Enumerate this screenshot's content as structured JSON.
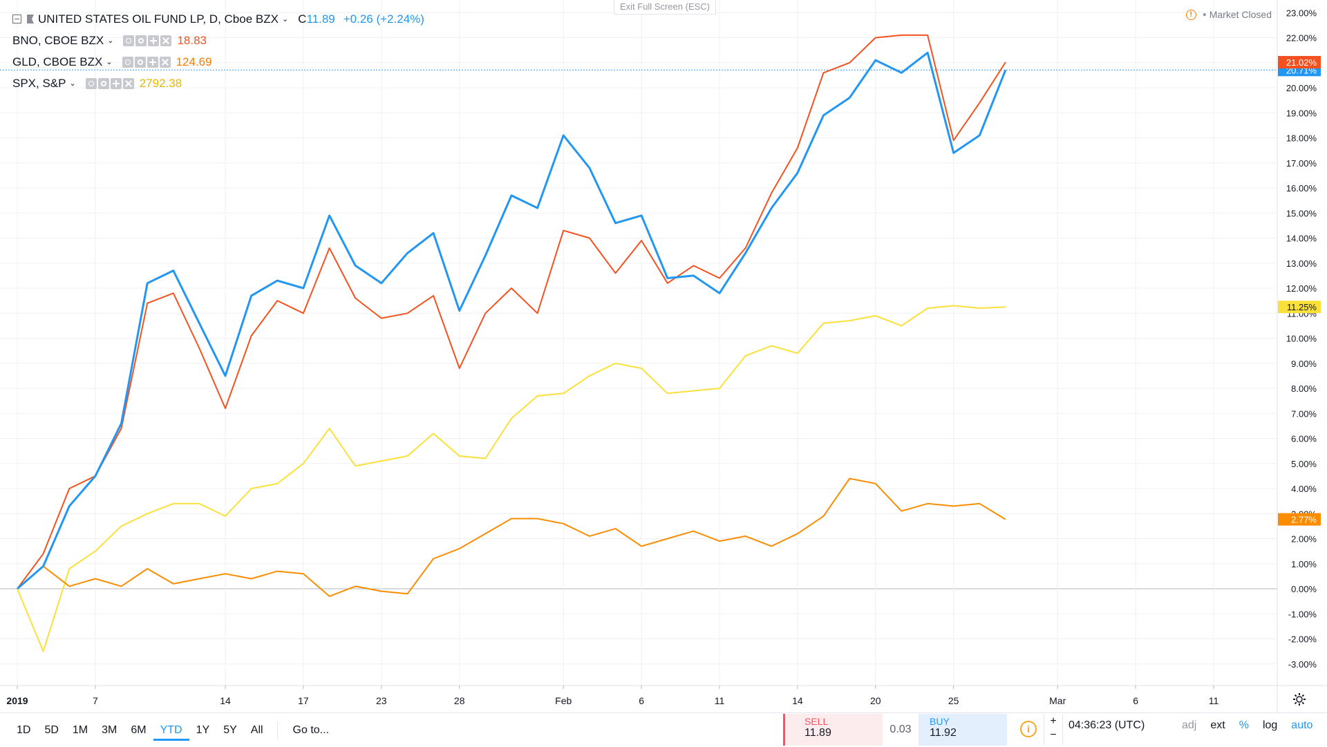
{
  "header": {
    "main_title": "UNITED STATES OIL FUND LP, D, Cboe BZX",
    "close_label": "C",
    "close_value": "11.89",
    "change": "+0.26 (+2.24%)",
    "exit_fullscreen": "Exit Full Screen (ESC)",
    "market_status": "Market Closed"
  },
  "compare": [
    {
      "label": "BNO, CBOE BZX",
      "value": "18.83",
      "color": "#f4511e"
    },
    {
      "label": "GLD, CBOE BZX",
      "value": "124.69",
      "color": "#f57c00"
    },
    {
      "label": "SPX, S&P",
      "value": "2792.38",
      "color": "#f9c400"
    }
  ],
  "colors": {
    "uso": "#2196f3",
    "bno": "#f4511e",
    "gld": "#fb8c00",
    "spx": "#fbe03a",
    "grid": "#eef0f4",
    "crosshair": "#2196f3"
  },
  "chart_data": {
    "type": "line",
    "percent_scale": true,
    "ylim": [
      -3.5,
      23.3
    ],
    "y_ticks": [
      "-3.00%",
      "-2.00%",
      "-1.00%",
      "0.00%",
      "1.00%",
      "2.00%",
      "3.00%",
      "4.00%",
      "5.00%",
      "6.00%",
      "7.00%",
      "8.00%",
      "9.00%",
      "10.00%",
      "11.00%",
      "12.00%",
      "13.00%",
      "14.00%",
      "15.00%",
      "16.00%",
      "17.00%",
      "18.00%",
      "19.00%",
      "20.00%",
      "21.00%",
      "22.00%",
      "23.00%"
    ],
    "y_tick_values": [
      -3,
      -2,
      -1,
      0,
      1,
      2,
      3,
      4,
      5,
      6,
      7,
      8,
      9,
      10,
      11,
      12,
      13,
      14,
      15,
      16,
      17,
      18,
      19,
      20,
      21,
      22,
      23
    ],
    "x_ticks": [
      "2019",
      "7",
      "14",
      "17",
      "23",
      "28",
      "Feb",
      "6",
      "11",
      "14",
      "20",
      "25",
      "Mar",
      "6",
      "11"
    ],
    "x_tick_days": [
      0,
      3,
      8,
      11,
      14,
      17,
      21,
      24,
      27,
      30,
      33,
      36,
      40,
      43,
      46
    ],
    "series": [
      {
        "name": "UNITED STATES OIL FUND LP",
        "color_key": "uso",
        "width": 3,
        "x": [
          0,
          1,
          2,
          3,
          4,
          5,
          6,
          7,
          8,
          9,
          10,
          11,
          12,
          13,
          14,
          15,
          16,
          17,
          18,
          19,
          20,
          21,
          22,
          23,
          24,
          25,
          26,
          27,
          28,
          29,
          30,
          31,
          32,
          33,
          34,
          35,
          36,
          37,
          38
        ],
        "y": [
          0,
          0.9,
          3.3,
          4.5,
          6.6,
          12.2,
          12.7,
          10.6,
          8.5,
          11.7,
          12.3,
          12.0,
          14.9,
          12.9,
          12.2,
          13.4,
          14.2,
          11.1,
          13.3,
          15.7,
          15.2,
          18.1,
          16.8,
          14.6,
          14.9,
          12.4,
          12.5,
          11.8,
          13.4,
          15.2,
          16.6,
          18.9,
          19.6,
          21.1,
          20.6,
          21.4,
          17.4,
          18.1,
          20.71
        ],
        "end_label": "20.71%"
      },
      {
        "name": "BNO, CBOE BZX",
        "color_key": "bno",
        "width": 2,
        "x": [
          0,
          1,
          2,
          3,
          4,
          5,
          6,
          7,
          8,
          9,
          10,
          11,
          12,
          13,
          14,
          15,
          16,
          17,
          18,
          19,
          20,
          21,
          22,
          23,
          24,
          25,
          26,
          27,
          28,
          29,
          30,
          31,
          32,
          33,
          34,
          35,
          36,
          37,
          38
        ],
        "y": [
          0,
          1.4,
          4.0,
          4.5,
          6.4,
          11.4,
          11.8,
          9.6,
          7.2,
          10.1,
          11.5,
          11.0,
          13.6,
          11.6,
          10.8,
          11.0,
          11.7,
          8.8,
          11.0,
          12.0,
          11.0,
          14.3,
          14.0,
          12.6,
          13.9,
          12.2,
          12.9,
          12.4,
          13.6,
          15.8,
          17.6,
          20.6,
          21.0,
          22.0,
          22.1,
          22.1,
          17.9,
          19.4,
          21.02
        ],
        "end_label": "21.02%"
      },
      {
        "name": "GLD, CBOE BZX",
        "color_key": "gld",
        "width": 2,
        "x": [
          0,
          1,
          2,
          3,
          4,
          5,
          6,
          7,
          8,
          9,
          10,
          11,
          12,
          13,
          14,
          15,
          16,
          17,
          18,
          19,
          20,
          21,
          22,
          23,
          24,
          25,
          26,
          27,
          28,
          29,
          30,
          31,
          32,
          33,
          34,
          35,
          36,
          37,
          38
        ],
        "y": [
          0,
          0.9,
          0.1,
          0.4,
          0.1,
          0.8,
          0.2,
          0.4,
          0.6,
          0.4,
          0.7,
          0.6,
          -0.3,
          0.1,
          -0.1,
          -0.2,
          1.2,
          1.6,
          2.2,
          2.8,
          2.8,
          2.6,
          2.1,
          2.4,
          1.7,
          2.0,
          2.3,
          1.9,
          2.1,
          1.7,
          2.2,
          2.9,
          4.4,
          4.2,
          3.1,
          3.4,
          3.3,
          3.4,
          2.77
        ],
        "end_label": "2.77%"
      },
      {
        "name": "SPX, S&P",
        "color_key": "spx",
        "width": 2,
        "x": [
          0,
          1,
          2,
          3,
          4,
          5,
          6,
          7,
          8,
          9,
          10,
          11,
          12,
          13,
          14,
          15,
          16,
          17,
          18,
          19,
          20,
          21,
          22,
          23,
          24,
          25,
          26,
          27,
          28,
          29,
          30,
          31,
          32,
          33,
          34,
          35,
          36,
          37,
          38
        ],
        "y": [
          0,
          -2.5,
          0.8,
          1.5,
          2.5,
          3.0,
          3.4,
          3.4,
          2.9,
          4.0,
          4.2,
          5.0,
          6.4,
          4.9,
          5.1,
          5.3,
          6.2,
          5.3,
          5.2,
          6.8,
          7.7,
          7.8,
          8.5,
          9.0,
          8.8,
          7.8,
          7.9,
          8.0,
          9.3,
          9.7,
          9.4,
          10.6,
          10.7,
          10.9,
          10.5,
          11.2,
          11.3,
          11.2,
          11.25
        ],
        "end_label": "11.25%"
      }
    ]
  },
  "bottom": {
    "ranges": [
      "1D",
      "5D",
      "1M",
      "3M",
      "6M",
      "YTD",
      "1Y",
      "5Y",
      "All"
    ],
    "active_range": "YTD",
    "goto": "Go to...",
    "sell_label": "SELL",
    "sell_value": "11.89",
    "spread": "0.03",
    "buy_label": "BUY",
    "buy_value": "11.92",
    "zoom_plus": "+",
    "zoom_minus": "−",
    "time": "04:36:23 (UTC)",
    "toggles": [
      "adj",
      "ext",
      "%",
      "log",
      "auto"
    ]
  }
}
